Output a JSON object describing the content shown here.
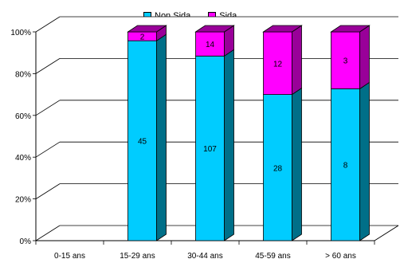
{
  "chart_data": {
    "type": "bar",
    "stacked": "percent",
    "title": "",
    "categories": [
      "0-15 ans",
      "15-29 ans",
      "30-44 ans",
      "45-59 ans",
      "> 60 ans"
    ],
    "series": [
      {
        "name": "Non Sida",
        "color": "#00ccff",
        "side_color": "#006f88",
        "values": [
          0,
          45,
          107,
          28,
          8
        ]
      },
      {
        "name": "Sida",
        "color": "#ff00ff",
        "side_color": "#990099",
        "values": [
          0,
          2,
          14,
          12,
          3
        ]
      }
    ],
    "y_ticks": [
      "0%",
      "20%",
      "40%",
      "60%",
      "80%",
      "100%"
    ],
    "ylim": [
      0,
      100
    ],
    "grid": true,
    "legend_position": "top"
  }
}
